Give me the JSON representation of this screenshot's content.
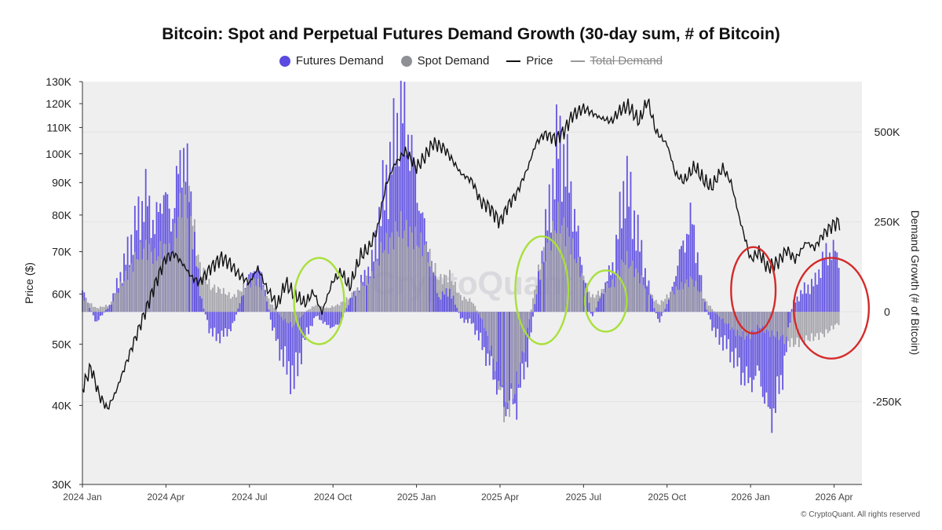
{
  "chart_data": {
    "type": "bar",
    "title": "Bitcoin: Spot and Perpetual Futures Demand Growth (30-day sum, # of Bitcoin)",
    "ylabel_left": "Price ($)",
    "ylabel_right": "Demand Growth (# of Bitcoin)",
    "legend": [
      {
        "name": "Futures Demand",
        "color": "#5b4be0",
        "kind": "dot"
      },
      {
        "name": "Spot Demand",
        "color": "#8f8f96",
        "kind": "dot"
      },
      {
        "name": "Price",
        "color": "#111111",
        "kind": "line"
      },
      {
        "name": "Total Demand",
        "color": "#888888",
        "kind": "line-struck"
      }
    ],
    "x_ticks": [
      "2024 Jan",
      "2024 Apr",
      "2024 Jul",
      "2024 Oct",
      "2025 Jan",
      "2025 Apr",
      "2025 Jul",
      "2025 Oct",
      "2026 Jan",
      "2026 Apr"
    ],
    "price_axis": {
      "scale": "log",
      "ylim": [
        30000,
        130000
      ],
      "ticks": [
        "30K",
        "40K",
        "50K",
        "60K",
        "70K",
        "80K",
        "90K",
        "100K",
        "110K",
        "120K",
        "130K"
      ],
      "tick_values": [
        30000,
        40000,
        50000,
        60000,
        70000,
        80000,
        90000,
        100000,
        110000,
        120000,
        130000
      ]
    },
    "demand_axis": {
      "ylim": [
        -480000,
        640000
      ],
      "ticks": [
        "500K",
        "250K",
        "0",
        "-250K"
      ],
      "tick_values": [
        500000,
        250000,
        0,
        -250000
      ]
    },
    "x_month_range": [
      0,
      28
    ],
    "price_series": [
      [
        0.0,
        42500
      ],
      [
        0.3,
        46000
      ],
      [
        0.6,
        41500
      ],
      [
        0.9,
        39500
      ],
      [
        1.2,
        42000
      ],
      [
        1.6,
        47000
      ],
      [
        2.0,
        52500
      ],
      [
        2.3,
        57000
      ],
      [
        2.6,
        62000
      ],
      [
        3.0,
        68500
      ],
      [
        3.3,
        69500
      ],
      [
        3.6,
        67000
      ],
      [
        3.9,
        64000
      ],
      [
        4.2,
        62500
      ],
      [
        4.6,
        66000
      ],
      [
        5.0,
        68500
      ],
      [
        5.3,
        67000
      ],
      [
        5.6,
        64500
      ],
      [
        6.0,
        62500
      ],
      [
        6.3,
        66000
      ],
      [
        6.6,
        61500
      ],
      [
        7.0,
        57500
      ],
      [
        7.3,
        62500
      ],
      [
        7.6,
        60000
      ],
      [
        8.0,
        58000
      ],
      [
        8.3,
        60500
      ],
      [
        8.6,
        56000
      ],
      [
        9.0,
        63000
      ],
      [
        9.3,
        65000
      ],
      [
        9.6,
        61500
      ],
      [
        10.0,
        69000
      ],
      [
        10.3,
        71000
      ],
      [
        10.6,
        76000
      ],
      [
        10.9,
        89000
      ],
      [
        11.2,
        96000
      ],
      [
        11.6,
        101000
      ],
      [
        12.0,
        95000
      ],
      [
        12.3,
        99000
      ],
      [
        12.6,
        104000
      ],
      [
        13.0,
        102000
      ],
      [
        13.3,
        97500
      ],
      [
        13.6,
        93000
      ],
      [
        14.0,
        90500
      ],
      [
        14.3,
        84000
      ],
      [
        14.6,
        82500
      ],
      [
        15.0,
        78000
      ],
      [
        15.3,
        83000
      ],
      [
        15.6,
        86500
      ],
      [
        16.0,
        95000
      ],
      [
        16.3,
        104000
      ],
      [
        16.6,
        107500
      ],
      [
        17.0,
        105500
      ],
      [
        17.3,
        108500
      ],
      [
        17.6,
        115000
      ],
      [
        18.0,
        118000
      ],
      [
        18.3,
        116000
      ],
      [
        18.6,
        114000
      ],
      [
        19.0,
        112500
      ],
      [
        19.3,
        117000
      ],
      [
        19.6,
        119000
      ],
      [
        20.0,
        112500
      ],
      [
        20.3,
        121500
      ],
      [
        20.6,
        108500
      ],
      [
        21.0,
        103500
      ],
      [
        21.3,
        93000
      ],
      [
        21.6,
        90500
      ],
      [
        22.0,
        95500
      ],
      [
        22.3,
        91000
      ],
      [
        22.6,
        88500
      ],
      [
        23.0,
        95000
      ],
      [
        23.3,
        90000
      ],
      [
        23.6,
        79000
      ],
      [
        24.0,
        68000
      ],
      [
        24.3,
        70000
      ],
      [
        24.6,
        66000
      ],
      [
        25.0,
        67500
      ],
      [
        25.3,
        70500
      ],
      [
        25.6,
        68000
      ],
      [
        26.0,
        72500
      ],
      [
        26.3,
        71000
      ],
      [
        26.6,
        74500
      ],
      [
        27.0,
        77500
      ],
      [
        27.2,
        78000
      ]
    ],
    "futures_series": [
      [
        0.0,
        60000
      ],
      [
        0.5,
        -30000
      ],
      [
        1.0,
        20000
      ],
      [
        1.5,
        130000
      ],
      [
        2.0,
        260000
      ],
      [
        2.3,
        320000
      ],
      [
        2.6,
        230000
      ],
      [
        2.9,
        340000
      ],
      [
        3.2,
        250000
      ],
      [
        3.6,
        460000
      ],
      [
        3.9,
        300000
      ],
      [
        4.2,
        60000
      ],
      [
        4.6,
        -60000
      ],
      [
        5.0,
        -70000
      ],
      [
        5.4,
        -40000
      ],
      [
        5.8,
        60000
      ],
      [
        6.2,
        130000
      ],
      [
        6.5,
        90000
      ],
      [
        6.8,
        -40000
      ],
      [
        7.2,
        -130000
      ],
      [
        7.6,
        -190000
      ],
      [
        8.0,
        -70000
      ],
      [
        8.4,
        -10000
      ],
      [
        8.8,
        -40000
      ],
      [
        9.2,
        -40000
      ],
      [
        9.6,
        30000
      ],
      [
        10.0,
        80000
      ],
      [
        10.4,
        130000
      ],
      [
        10.8,
        320000
      ],
      [
        11.1,
        420000
      ],
      [
        11.4,
        560000
      ],
      [
        11.7,
        500000
      ],
      [
        12.0,
        350000
      ],
      [
        12.4,
        180000
      ],
      [
        12.8,
        40000
      ],
      [
        13.2,
        60000
      ],
      [
        13.6,
        -20000
      ],
      [
        14.0,
        -30000
      ],
      [
        14.4,
        -100000
      ],
      [
        14.8,
        -180000
      ],
      [
        15.2,
        -260000
      ],
      [
        15.6,
        -250000
      ],
      [
        16.0,
        -120000
      ],
      [
        16.4,
        100000
      ],
      [
        16.8,
        300000
      ],
      [
        17.1,
        480000
      ],
      [
        17.5,
        360000
      ],
      [
        17.9,
        150000
      ],
      [
        18.3,
        -20000
      ],
      [
        18.7,
        60000
      ],
      [
        19.1,
        140000
      ],
      [
        19.5,
        370000
      ],
      [
        19.9,
        230000
      ],
      [
        20.3,
        80000
      ],
      [
        20.7,
        -30000
      ],
      [
        21.1,
        40000
      ],
      [
        21.5,
        170000
      ],
      [
        21.9,
        260000
      ],
      [
        22.3,
        40000
      ],
      [
        22.7,
        -60000
      ],
      [
        23.1,
        -90000
      ],
      [
        23.5,
        -140000
      ],
      [
        23.9,
        -200000
      ],
      [
        24.3,
        -170000
      ],
      [
        24.7,
        -300000
      ],
      [
        25.1,
        -200000
      ],
      [
        25.5,
        20000
      ],
      [
        25.9,
        60000
      ],
      [
        26.3,
        80000
      ],
      [
        26.7,
        160000
      ],
      [
        27.0,
        170000
      ],
      [
        27.2,
        140000
      ]
    ],
    "spot_series": [
      [
        0.0,
        40000
      ],
      [
        0.5,
        10000
      ],
      [
        1.0,
        20000
      ],
      [
        1.5,
        90000
      ],
      [
        2.0,
        160000
      ],
      [
        2.3,
        180000
      ],
      [
        2.6,
        150000
      ],
      [
        2.9,
        180000
      ],
      [
        3.2,
        160000
      ],
      [
        3.6,
        330000
      ],
      [
        3.9,
        290000
      ],
      [
        4.2,
        130000
      ],
      [
        4.6,
        70000
      ],
      [
        5.0,
        60000
      ],
      [
        5.4,
        40000
      ],
      [
        5.8,
        70000
      ],
      [
        6.2,
        90000
      ],
      [
        6.5,
        60000
      ],
      [
        6.8,
        20000
      ],
      [
        7.2,
        -20000
      ],
      [
        7.6,
        -40000
      ],
      [
        8.0,
        0
      ],
      [
        8.4,
        20000
      ],
      [
        8.8,
        10000
      ],
      [
        9.2,
        20000
      ],
      [
        9.6,
        40000
      ],
      [
        10.0,
        70000
      ],
      [
        10.4,
        100000
      ],
      [
        10.8,
        180000
      ],
      [
        11.1,
        200000
      ],
      [
        11.4,
        240000
      ],
      [
        11.7,
        220000
      ],
      [
        12.0,
        200000
      ],
      [
        12.4,
        170000
      ],
      [
        12.8,
        90000
      ],
      [
        13.2,
        100000
      ],
      [
        13.6,
        40000
      ],
      [
        14.0,
        30000
      ],
      [
        14.4,
        -30000
      ],
      [
        14.8,
        -140000
      ],
      [
        15.2,
        -280000
      ],
      [
        15.6,
        -200000
      ],
      [
        16.0,
        -40000
      ],
      [
        16.4,
        120000
      ],
      [
        16.8,
        200000
      ],
      [
        17.1,
        260000
      ],
      [
        17.5,
        200000
      ],
      [
        17.9,
        110000
      ],
      [
        18.3,
        40000
      ],
      [
        18.7,
        60000
      ],
      [
        19.1,
        80000
      ],
      [
        19.5,
        150000
      ],
      [
        19.9,
        110000
      ],
      [
        20.3,
        60000
      ],
      [
        20.7,
        20000
      ],
      [
        21.1,
        50000
      ],
      [
        21.5,
        70000
      ],
      [
        21.9,
        90000
      ],
      [
        22.3,
        40000
      ],
      [
        22.7,
        0
      ],
      [
        23.1,
        -30000
      ],
      [
        23.5,
        -60000
      ],
      [
        23.9,
        -70000
      ],
      [
        24.3,
        -40000
      ],
      [
        24.7,
        -60000
      ],
      [
        25.1,
        -70000
      ],
      [
        25.5,
        -90000
      ],
      [
        25.9,
        -80000
      ],
      [
        26.3,
        -70000
      ],
      [
        26.7,
        -60000
      ],
      [
        27.0,
        -40000
      ],
      [
        27.2,
        -30000
      ]
    ],
    "annotation_ellipses": [
      {
        "color": "#a8e03a",
        "month": 8.5,
        "demand_center": 30000,
        "month_half": 0.9,
        "demand_half": 120000
      },
      {
        "color": "#a8e03a",
        "month": 16.5,
        "demand_center": 60000,
        "month_half": 0.95,
        "demand_half": 150000
      },
      {
        "color": "#a8e03a",
        "month": 18.8,
        "demand_center": 30000,
        "month_half": 0.75,
        "demand_half": 85000
      },
      {
        "color": "#d42a2a",
        "month": 24.1,
        "demand_center": 60000,
        "month_half": 0.8,
        "demand_half": 120000
      },
      {
        "color": "#d42a2a",
        "month": 26.9,
        "demand_center": 10000,
        "month_half": 1.35,
        "demand_half": 140000
      }
    ],
    "watermark": "CryptoQuant"
  },
  "footer": "© CryptoQuant. All rights reserved"
}
